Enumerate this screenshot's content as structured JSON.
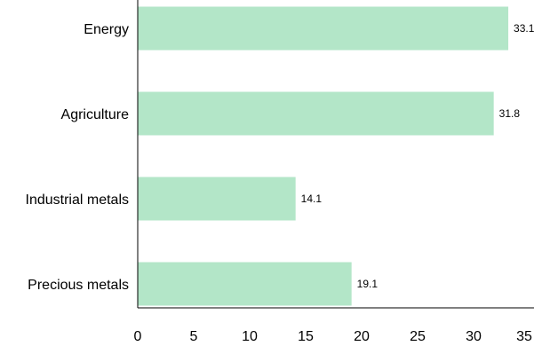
{
  "chart_data": {
    "type": "bar",
    "orientation": "horizontal",
    "categories": [
      "Energy",
      "Agriculture",
      "Industrial metals",
      "Precious metals"
    ],
    "values": [
      33.1,
      31.8,
      14.1,
      19.1
    ],
    "data_labels": [
      "33.1",
      "31.8",
      "14.1",
      "19.1"
    ],
    "x_ticks": [
      "0",
      "5",
      "10",
      "15",
      "20",
      "25",
      "30",
      "35"
    ],
    "xlim": [
      0,
      35
    ],
    "title": "",
    "xlabel": "",
    "ylabel": "",
    "grid": false,
    "bar_color": "#b3e6c8"
  }
}
